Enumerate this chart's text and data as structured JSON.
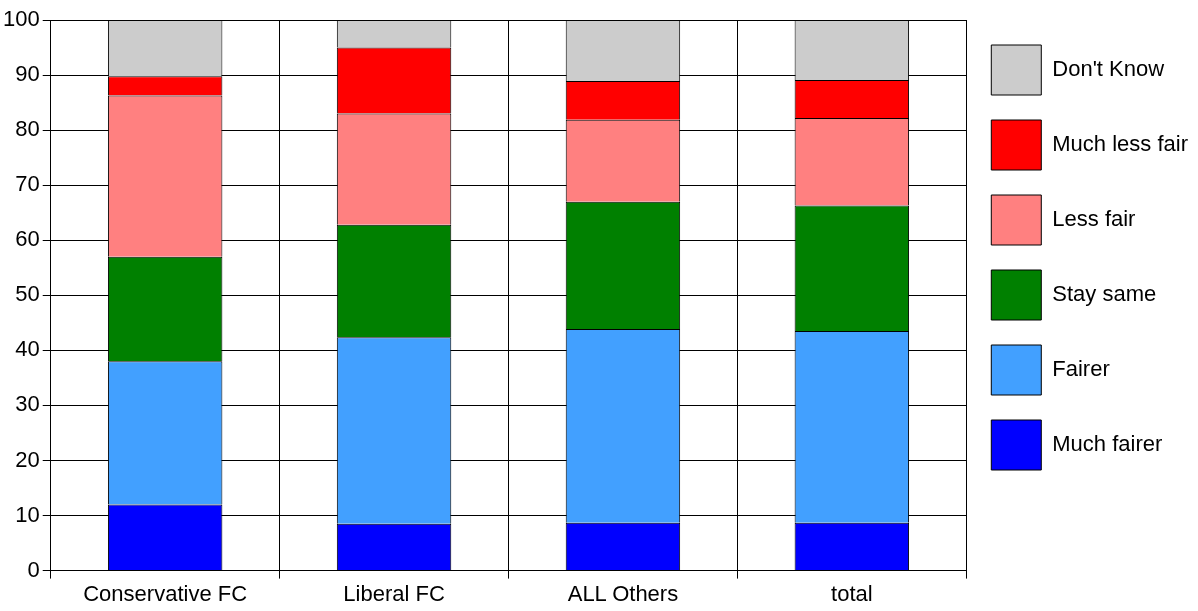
{
  "chart_data": {
    "type": "bar",
    "stacked": true,
    "categories": [
      "Conservative FC",
      "Liberal FC",
      "ALL Others",
      "total"
    ],
    "series": [
      {
        "name": "Much fairer",
        "color": "#0000ff",
        "values": [
          12,
          8.5,
          8.7,
          8.7
        ]
      },
      {
        "name": "Fairer",
        "color": "#42a0ff",
        "values": [
          26,
          33.9,
          35.2,
          34.8
        ]
      },
      {
        "name": "Stay same",
        "color": "#008000",
        "values": [
          19,
          20.4,
          23.1,
          22.8
        ]
      },
      {
        "name": "Less fair",
        "color": "#ff8080",
        "values": [
          29.3,
          20.2,
          14.9,
          15.9
        ]
      },
      {
        "name": "Much less fair",
        "color": "#ff0000",
        "values": [
          3.5,
          12,
          7,
          6.9
        ]
      },
      {
        "name": "Don't Know",
        "color": "#cccccc",
        "values": [
          10.2,
          5,
          11.1,
          10.9
        ]
      }
    ],
    "ylim": [
      0,
      100
    ],
    "yticks": [
      0,
      10,
      20,
      30,
      40,
      50,
      60,
      70,
      80,
      90,
      100
    ],
    "grid": true,
    "legend": "right"
  }
}
